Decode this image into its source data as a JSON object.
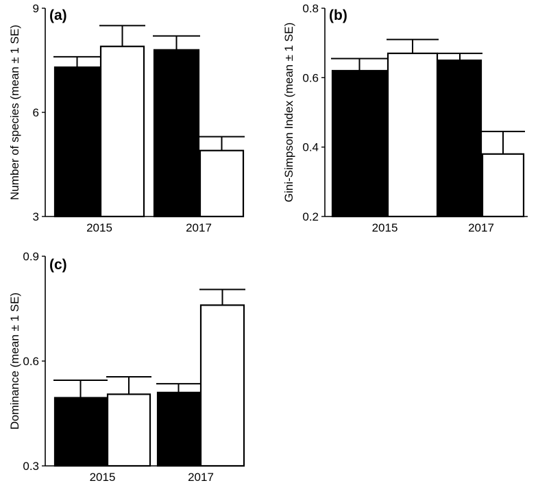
{
  "colors": {
    "black_bars": "#000000",
    "white_bars": "#ffffff",
    "axis": "#000000"
  },
  "chart_data": [
    {
      "type": "bar",
      "panel_label": "(a)",
      "ylabel": "Number of species (mean ± 1 SE)",
      "xlabel": "",
      "categories": [
        "2015",
        "2017"
      ],
      "ylim": [
        3,
        9
      ],
      "yticks": [
        "3",
        "6",
        "9"
      ],
      "series": [
        {
          "color": "#000000",
          "values": [
            7.3,
            7.8
          ],
          "errors": [
            0.3,
            0.4
          ]
        },
        {
          "color": "#ffffff",
          "values": [
            7.9,
            4.9
          ],
          "errors": [
            0.6,
            0.4
          ]
        }
      ]
    },
    {
      "type": "bar",
      "panel_label": "(b)",
      "ylabel": "Gini-Simpson Index (mean ± 1 SE)",
      "xlabel": "",
      "categories": [
        "2015",
        "2017"
      ],
      "ylim": [
        0.2,
        0.8
      ],
      "yticks": [
        "0.2",
        "0.4",
        "0.6",
        "0.8"
      ],
      "series": [
        {
          "color": "#000000",
          "values": [
            0.62,
            0.65
          ],
          "errors": [
            0.035,
            0.02
          ]
        },
        {
          "color": "#ffffff",
          "values": [
            0.67,
            0.38
          ],
          "errors": [
            0.04,
            0.065
          ]
        }
      ]
    },
    {
      "type": "bar",
      "panel_label": "(c)",
      "ylabel": "Dominance (mean ± 1 SE)",
      "xlabel": "",
      "categories": [
        "2015",
        "2017"
      ],
      "ylim": [
        0.3,
        0.9
      ],
      "yticks": [
        "0.3",
        "0.6",
        "0.9"
      ],
      "series": [
        {
          "color": "#000000",
          "values": [
            0.495,
            0.51
          ],
          "errors": [
            0.05,
            0.025
          ]
        },
        {
          "color": "#ffffff",
          "values": [
            0.505,
            0.76
          ],
          "errors": [
            0.05,
            0.045
          ]
        }
      ]
    }
  ]
}
